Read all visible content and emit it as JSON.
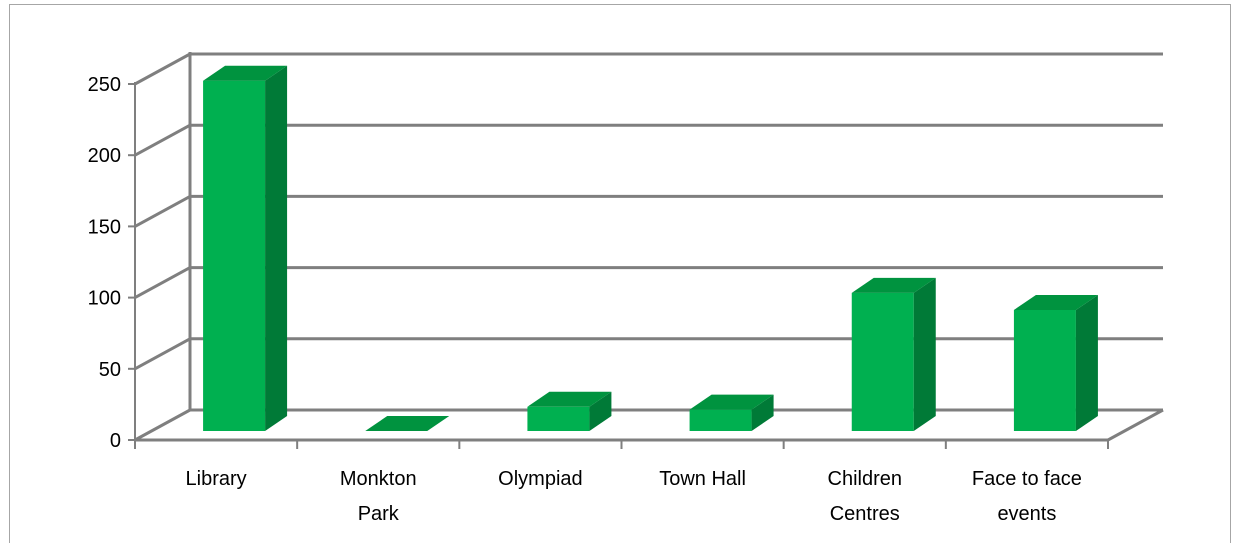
{
  "chart_data": {
    "type": "bar",
    "style": "3d-column",
    "categories": [
      [
        "Library"
      ],
      [
        "Monkton",
        "Park"
      ],
      [
        "Olympiad"
      ],
      [
        "Town Hall"
      ],
      [
        "Children",
        "Centres"
      ],
      [
        "Face to face",
        "events"
      ]
    ],
    "values": [
      246,
      0,
      17,
      15,
      97,
      85
    ],
    "title": "",
    "xlabel": "",
    "ylabel": "",
    "ylim": [
      0,
      250
    ],
    "yticks": [
      0,
      50,
      100,
      150,
      200,
      250
    ],
    "grid": true,
    "legend": "none",
    "colors": {
      "front": "#00b050",
      "side": "#007a37",
      "top": "#00933f",
      "grid": "#7f7f7f"
    }
  }
}
